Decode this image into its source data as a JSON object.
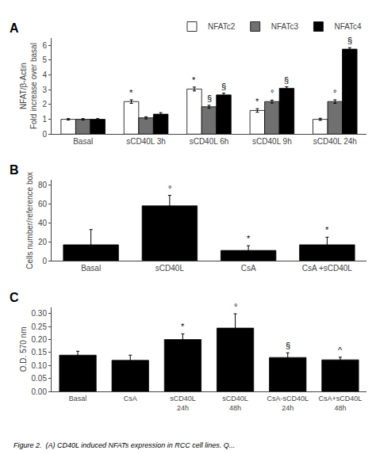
{
  "caption": "Figure 2.  (A) CD40L induced NFATs expression in RCC cell lines. Q...",
  "chart_data": [
    {
      "type": "bar",
      "title": "A",
      "categories": [
        "Basal",
        "sCD40L 3h",
        "sCD40L 6h",
        "sCD40L 9h",
        "sCD40L 24h"
      ],
      "series": [
        {
          "name": "NFATc2",
          "color": "white",
          "values": [
            1.0,
            2.2,
            3.05,
            1.6,
            1.0
          ],
          "errors": [
            0.05,
            0.12,
            0.13,
            0.12,
            0.07
          ],
          "annotations": [
            null,
            "*",
            "*",
            "*",
            null
          ]
        },
        {
          "name": "NFATc3",
          "color": "#707070",
          "values": [
            1.0,
            1.1,
            1.85,
            2.2,
            2.2
          ],
          "errors": [
            0.05,
            0.07,
            0.1,
            0.1,
            0.12
          ],
          "annotations": [
            null,
            null,
            "§",
            "°",
            "°"
          ]
        },
        {
          "name": "NFATc4",
          "color": "black",
          "values": [
            1.0,
            1.35,
            2.65,
            3.1,
            5.75
          ],
          "errors": [
            0.05,
            0.1,
            0.12,
            0.1,
            0.1
          ],
          "annotations": [
            null,
            null,
            "§",
            "§",
            "§"
          ]
        }
      ],
      "ylabel": "NFAT/β-Actin\nFold increase over basal",
      "ylim": [
        0,
        6.5
      ],
      "yticks": [
        0,
        1,
        2,
        3,
        4,
        5,
        6
      ],
      "legend": "upper right",
      "grid": false
    },
    {
      "type": "bar",
      "title": "B",
      "categories": [
        "Basal",
        "sCD40L",
        "CsA",
        "CsA +sCD40L"
      ],
      "values": [
        17,
        58,
        11,
        17
      ],
      "errors": [
        16,
        11,
        5,
        8
      ],
      "annotations": [
        null,
        "°",
        "*",
        "*"
      ],
      "color": "black",
      "ylabel": "Cells number/reference box",
      "ylim": [
        0,
        85
      ],
      "yticks": [
        0,
        20,
        40,
        60,
        80
      ],
      "grid": false
    },
    {
      "type": "bar",
      "title": "C",
      "categories": [
        "Basal",
        "CsA",
        "sCD40L\n24h",
        "sCD40L\n48h",
        "CsA-sCD40L\n24h",
        "CsA+sCD40L\n48h"
      ],
      "values": [
        0.14,
        0.12,
        0.2,
        0.244,
        0.131,
        0.122
      ],
      "errors": [
        0.015,
        0.02,
        0.022,
        0.055,
        0.018,
        0.01
      ],
      "annotations": [
        null,
        null,
        "*",
        "°",
        "§",
        "^"
      ],
      "color": "black",
      "ylabel": "O.D. 570 nm",
      "ylim": [
        0,
        0.325
      ],
      "yticks": [
        {
          "value": 0,
          "label": "0.00"
        },
        0.05,
        {
          "value": 0.1,
          "label": "0.10"
        },
        0.15,
        {
          "value": 0.2,
          "label": "0.20"
        },
        0.25,
        {
          "value": 0.3,
          "label": "0.30"
        }
      ],
      "grid": false
    }
  ]
}
